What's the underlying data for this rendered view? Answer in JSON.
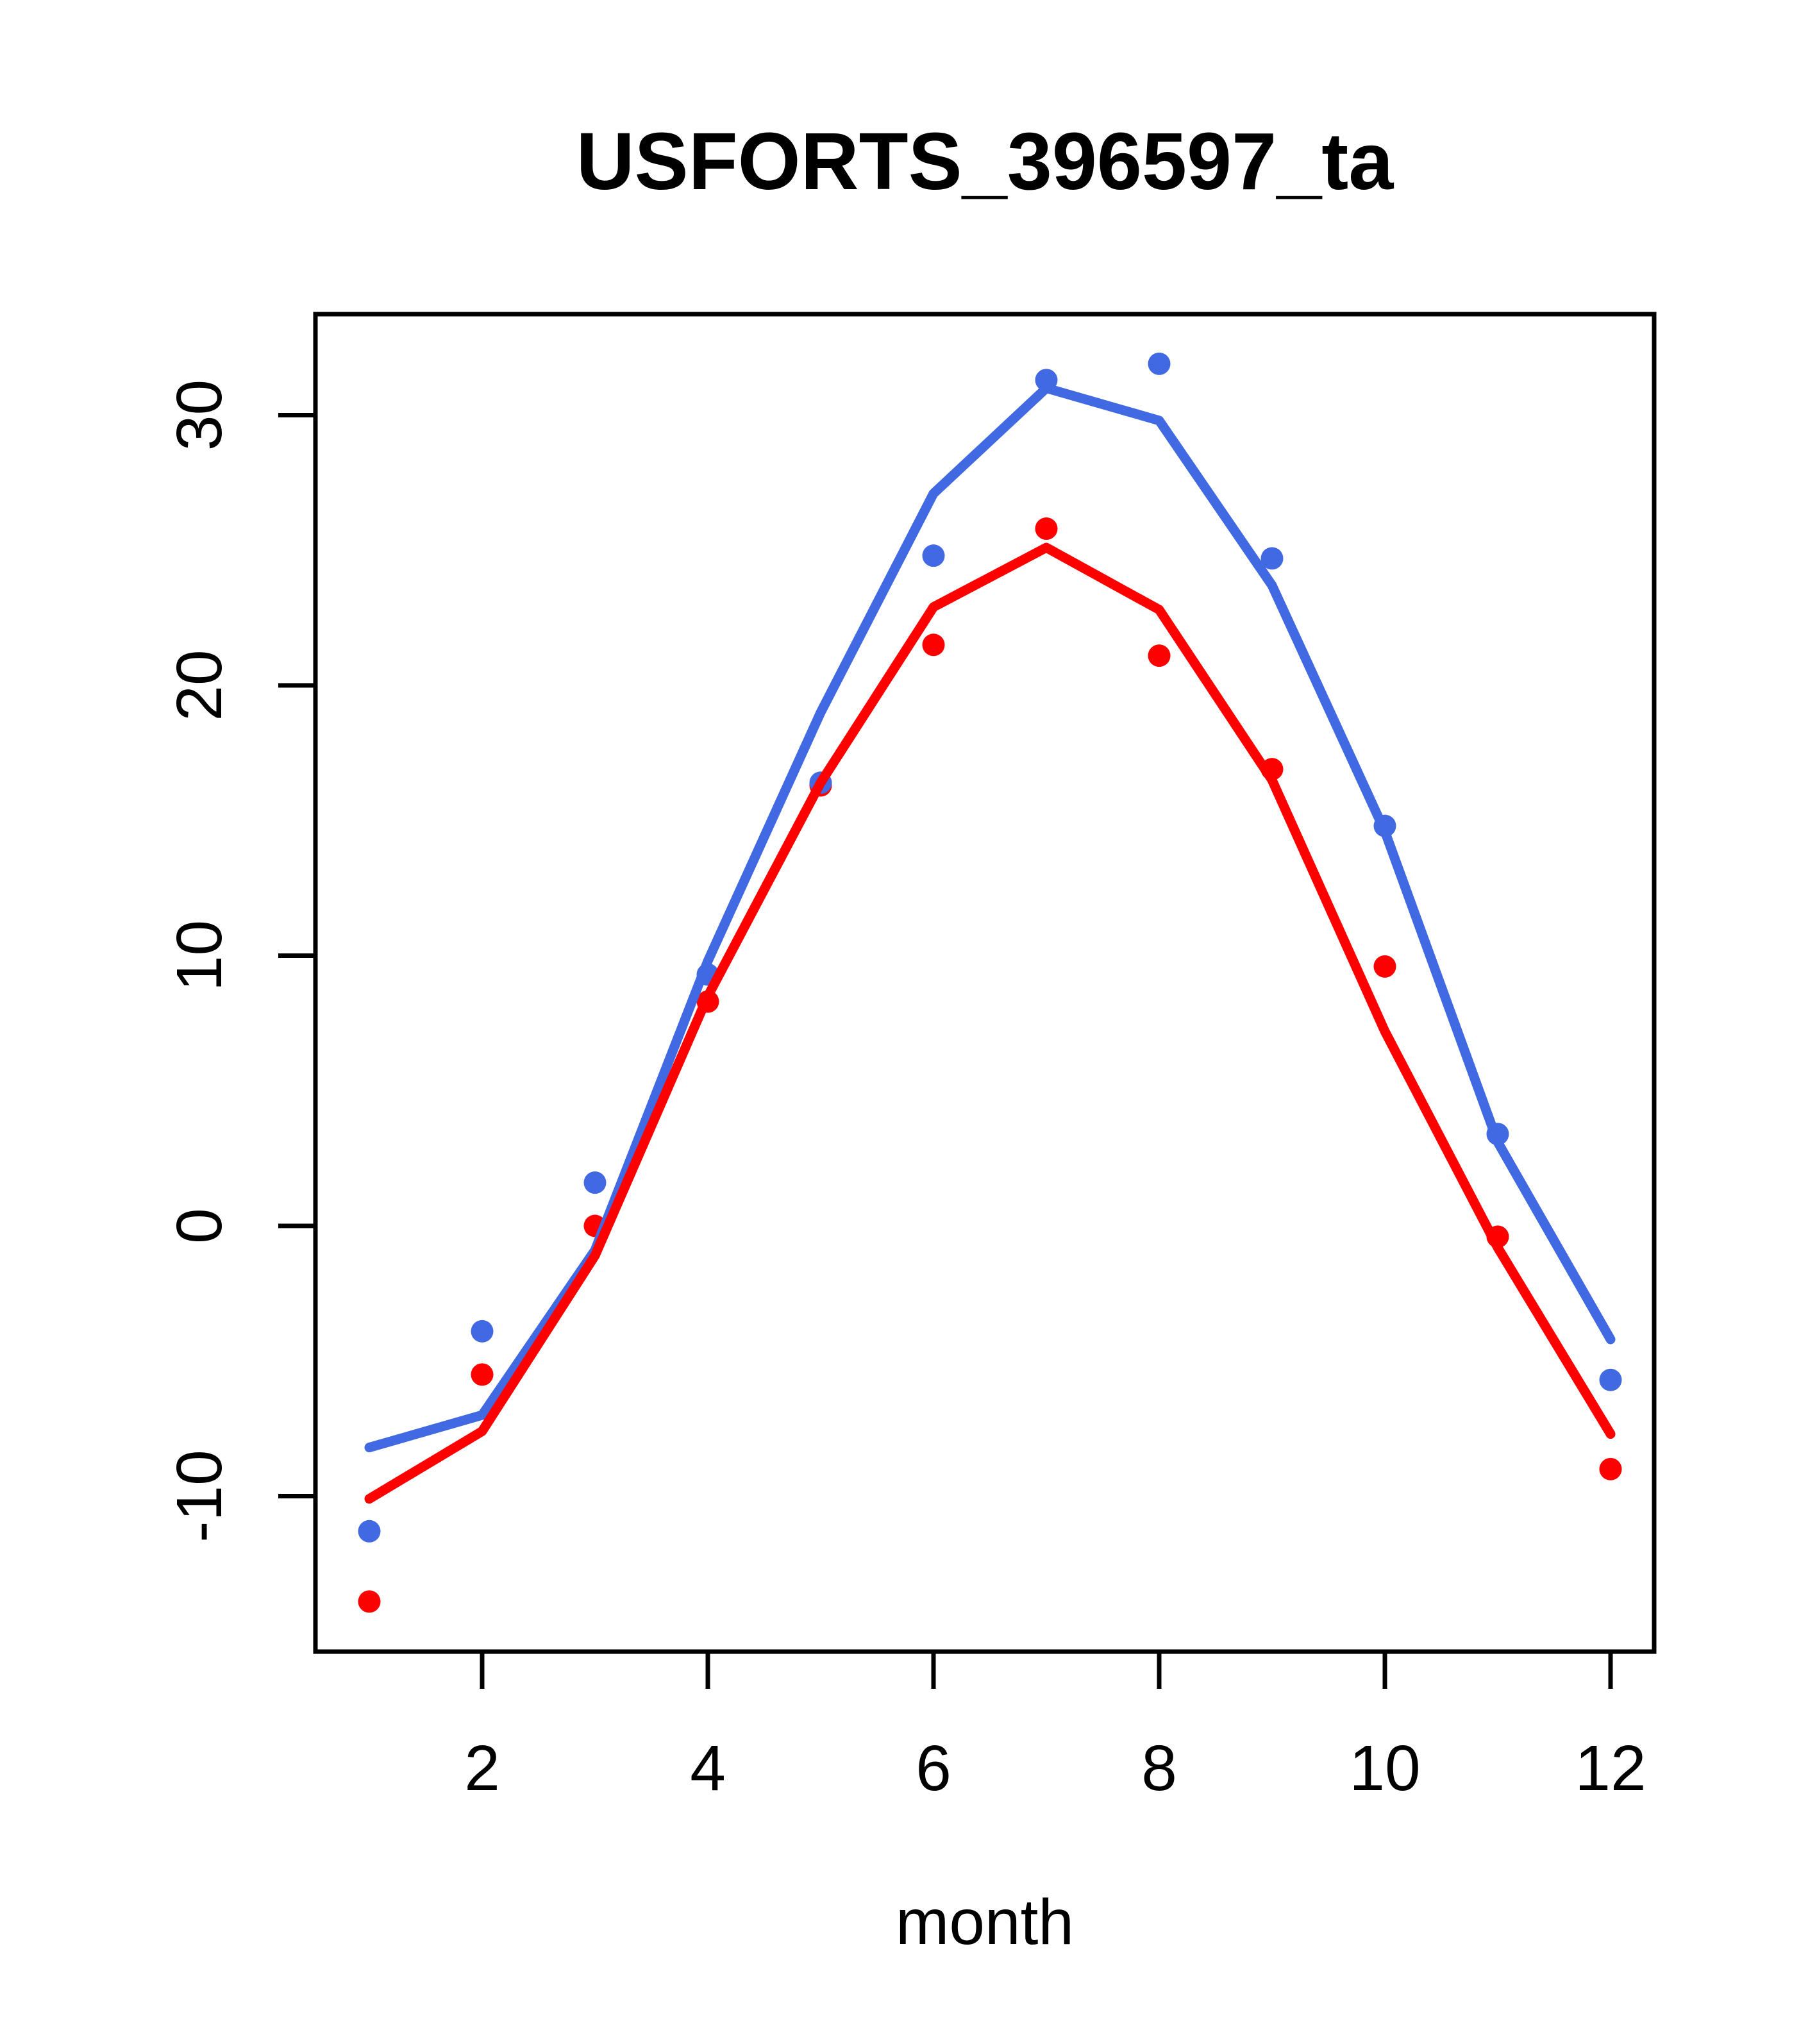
{
  "title": "USFORTS_396597_ta",
  "x_axis": {
    "label": "month",
    "ticks": [
      2,
      4,
      6,
      8,
      10,
      12
    ]
  },
  "y_axis": {
    "label": "",
    "ticks": [
      -10,
      0,
      10,
      20,
      30
    ]
  },
  "colors": {
    "blue_series": "#4169E1",
    "red_series": "#FF0000",
    "axis": "#000000",
    "background": "#FFFFFF"
  },
  "chart_data": {
    "type": "line",
    "title": "USFORTS_396597_ta",
    "xlabel": "month",
    "ylabel": "",
    "x": [
      1,
      2,
      3,
      4,
      5,
      6,
      7,
      8,
      9,
      10,
      11,
      12
    ],
    "x_ticks": [
      2,
      4,
      6,
      8,
      10,
      12
    ],
    "y_ticks": [
      -10,
      0,
      10,
      20,
      30
    ],
    "xlim": [
      0.52,
      12.39
    ],
    "ylim": [
      -15.8,
      33.7
    ],
    "grid": false,
    "legend": null,
    "series": [
      {
        "name": "red-points",
        "style": "points",
        "color": "#FF0000",
        "values": [
          -13.9,
          -5.5,
          0.0,
          8.3,
          16.3,
          21.5,
          25.8,
          21.1,
          16.9,
          9.6,
          -0.4,
          -9.0
        ]
      },
      {
        "name": "blue-points",
        "style": "points",
        "color": "#4169E1",
        "values": [
          -11.3,
          -3.9,
          1.6,
          9.3,
          16.4,
          24.8,
          31.3,
          31.9,
          24.7,
          14.8,
          3.4,
          -5.7
        ]
      },
      {
        "name": "blue-line",
        "style": "line",
        "color": "#4169E1",
        "values": [
          -8.2,
          -7.0,
          -0.9,
          9.8,
          19.0,
          27.1,
          31.0,
          29.8,
          23.7,
          14.6,
          3.1,
          -4.2
        ]
      },
      {
        "name": "red-line",
        "style": "line",
        "color": "#FF0000",
        "values": [
          -10.1,
          -7.6,
          -1.1,
          8.5,
          16.4,
          22.9,
          25.1,
          22.8,
          16.5,
          7.2,
          -0.8,
          -7.7
        ]
      }
    ]
  }
}
